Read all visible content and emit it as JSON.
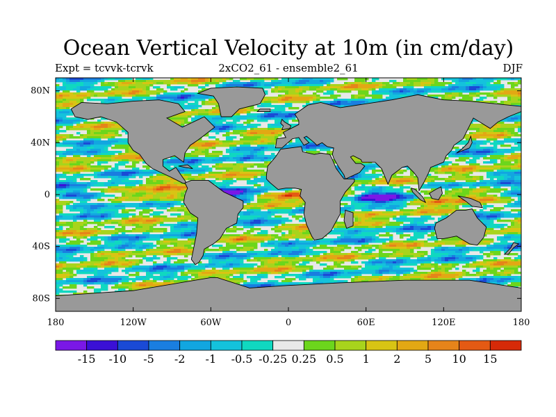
{
  "title": "Ocean Vertical Velocity at 10m (in cm/day)",
  "subtitle_left": "Expt = tcvvk-tcrvk",
  "subtitle_center": "2xCO2_61 - ensemble2_61",
  "subtitle_right": "DJF",
  "axes": {
    "x_ticks": [
      "180",
      "120W",
      "60W",
      "0",
      "60E",
      "120E",
      "180"
    ],
    "y_ticks": [
      "80N",
      "40N",
      "0",
      "40S",
      "80S"
    ]
  },
  "colorbar": {
    "colors": [
      "#7a18e6",
      "#3a10d6",
      "#1a4ad6",
      "#1a7ee0",
      "#12a6e0",
      "#14c2dc",
      "#10d8c0",
      "#e8e8e8",
      "#6cd61c",
      "#a8d41c",
      "#d8c414",
      "#e2a814",
      "#e6841a",
      "#e45a14",
      "#d62a08"
    ],
    "labels": [
      "-15",
      "-10",
      "-5",
      "-2",
      "-1",
      "-0.5",
      "-0.25",
      "0.25",
      "0.5",
      "1",
      "2",
      "5",
      "10",
      "15"
    ]
  },
  "colors": {
    "land": "#999999",
    "missing": "#e8e8e8"
  }
}
